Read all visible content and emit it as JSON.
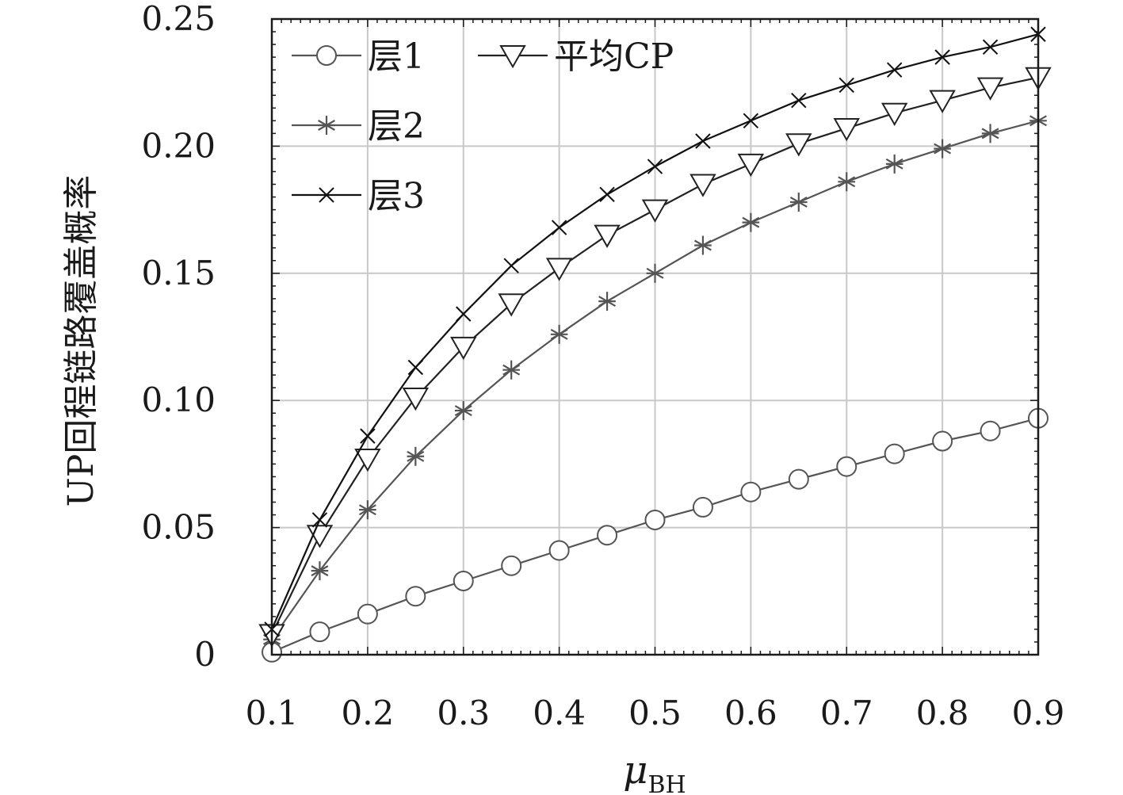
{
  "chart_data": {
    "type": "line",
    "title": "",
    "xlabel": "μ",
    "xlabel_sub": "BH",
    "ylabel": "UP回程链路覆盖概率",
    "xlim": [
      0.1,
      0.9
    ],
    "ylim": [
      0,
      0.25
    ],
    "grid": true,
    "legend_position": "top-left",
    "x_ticks": [
      "0.1",
      "0.2",
      "0.3",
      "0.4",
      "0.5",
      "0.6",
      "0.7",
      "0.8",
      "0.9"
    ],
    "y_ticks": [
      "0",
      "0.05",
      "0.10",
      "0.15",
      "0.20",
      "0.25"
    ],
    "x": [
      0.1,
      0.15,
      0.2,
      0.25,
      0.3,
      0.35,
      0.4,
      0.45,
      0.5,
      0.55,
      0.6,
      0.65,
      0.7,
      0.75,
      0.8,
      0.85,
      0.9
    ],
    "series": [
      {
        "name": "层1",
        "marker": "circle",
        "color": "#555555",
        "values": [
          0.001,
          0.009,
          0.016,
          0.023,
          0.029,
          0.035,
          0.041,
          0.047,
          0.053,
          0.058,
          0.064,
          0.069,
          0.074,
          0.079,
          0.084,
          0.088,
          0.093
        ]
      },
      {
        "name": "层2",
        "marker": "asterisk",
        "color": "#555555",
        "values": [
          0.006,
          0.033,
          0.057,
          0.078,
          0.096,
          0.112,
          0.126,
          0.139,
          0.15,
          0.161,
          0.17,
          0.178,
          0.186,
          0.193,
          0.199,
          0.205,
          0.21
        ]
      },
      {
        "name": "层3",
        "marker": "x",
        "color": "#111111",
        "values": [
          0.01,
          0.053,
          0.086,
          0.113,
          0.134,
          0.153,
          0.168,
          0.181,
          0.192,
          0.202,
          0.21,
          0.218,
          0.224,
          0.23,
          0.235,
          0.239,
          0.244
        ]
      },
      {
        "name": "平均CP",
        "marker": "triangle-down",
        "color": "#222222",
        "values": [
          0.008,
          0.047,
          0.077,
          0.101,
          0.121,
          0.138,
          0.152,
          0.165,
          0.175,
          0.185,
          0.193,
          0.201,
          0.207,
          0.213,
          0.218,
          0.223,
          0.227
        ]
      }
    ]
  }
}
